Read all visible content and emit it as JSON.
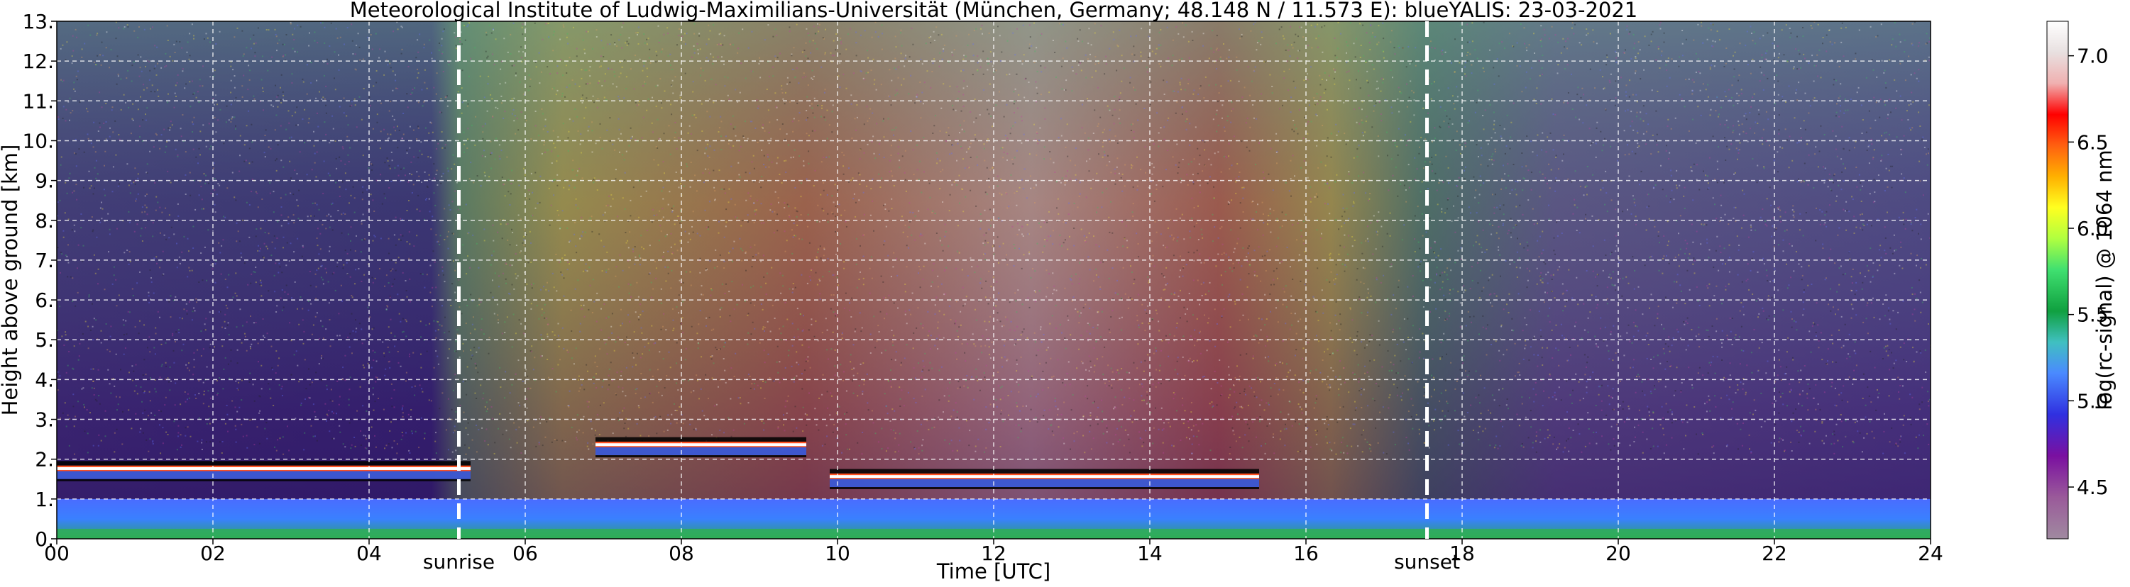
{
  "chart_data": {
    "type": "heatmap",
    "title": "Meteorological Institute of Ludwig-Maximilians-Universität (München, Germany; 48.148 N / 11.573 E):    blueYALIS: 23-03-2021",
    "xlabel": "Time [UTC]",
    "ylabel": "Height above ground [km]",
    "xlim": [
      0,
      24
    ],
    "ylim": [
      0,
      13
    ],
    "x_ticks": [
      "00",
      "02",
      "04",
      "06",
      "08",
      "10",
      "12",
      "14",
      "16",
      "18",
      "20",
      "22",
      "24"
    ],
    "y_ticks": [
      "0.",
      "1.",
      "2.",
      "3.",
      "4.",
      "5.",
      "6.",
      "7.",
      "8.",
      "9.",
      "10.",
      "11.",
      "12.",
      "13."
    ],
    "grid": true,
    "colorbar": {
      "label": "log(rc-signal) @ 1064 nm",
      "range": [
        4.2,
        7.2
      ],
      "ticks": [
        "4.5",
        "5.0",
        "5.5",
        "6.0",
        "6.5",
        "7.0"
      ]
    },
    "annotations": [
      {
        "text": "sunrise",
        "x": 5.15
      },
      {
        "text": "sunset",
        "x": 17.55
      }
    ],
    "layers": [
      {
        "kind": "aerosol_layer",
        "x": [
          0.0,
          5.3
        ],
        "y": [
          1.5,
          1.9
        ],
        "value": 6.8
      },
      {
        "kind": "aerosol_layer",
        "x": [
          6.9,
          9.6
        ],
        "y": [
          2.1,
          2.5
        ],
        "value": 7.0
      },
      {
        "kind": "aerosol_layer",
        "x": [
          9.9,
          15.4
        ],
        "y": [
          1.3,
          1.7
        ],
        "value": 6.9
      },
      {
        "kind": "boundary_layer",
        "x": [
          0.0,
          24.0
        ],
        "y": [
          0.0,
          1.0
        ],
        "value": 5.1
      }
    ]
  },
  "colors": {
    "night_background": "#2a1560",
    "day_background": "#b86a3a",
    "layer_peak": "#ffffff"
  }
}
